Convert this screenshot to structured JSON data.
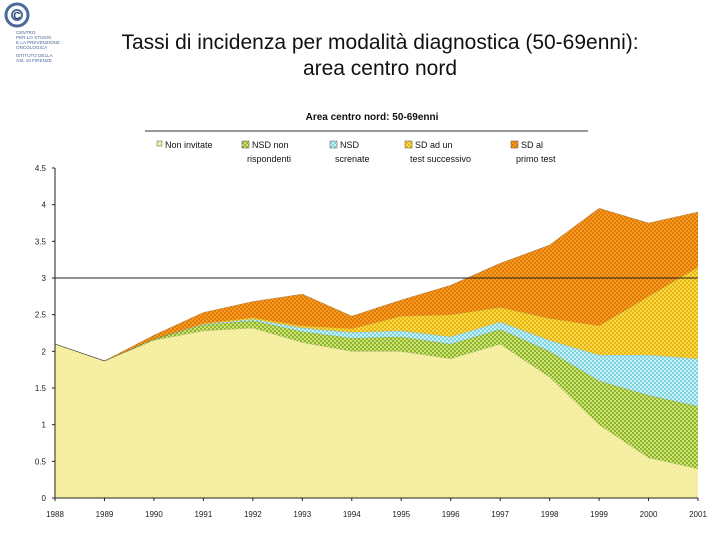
{
  "slide": {
    "title_line1": "Tassi di incidenza per modalità diagnostica (50-69enni):",
    "title_line2": "area centro nord"
  },
  "logo": {
    "monogram": "C",
    "lines": [
      "CENTRO",
      "PER LO STUDIO",
      "E LA PREVENZIONE",
      "ONCOLOGICA",
      "ISTITUTO DELLA",
      "ASL 10 FIRENZE"
    ]
  },
  "chart_data": {
    "type": "area",
    "stacked": true,
    "title": "Area centro nord: 50-69enni",
    "ylim": [
      0,
      4.5
    ],
    "yticks": [
      "0",
      "0.5",
      "1",
      "1.5",
      "2",
      "2.5",
      "3",
      "3.5",
      "4",
      "4.5"
    ],
    "ytick_values": [
      0,
      0.5,
      1,
      1.5,
      2,
      2.5,
      3,
      3.5,
      4,
      4.5
    ],
    "gridline": 3,
    "categories": [
      "1988",
      "1989",
      "1990",
      "1991",
      "1992",
      "1993",
      "1994",
      "1995",
      "1996",
      "1997",
      "1998",
      "1999",
      "2000",
      "2001"
    ],
    "series": [
      {
        "name": "Non invitate",
        "legend": [
          "Non invitate"
        ],
        "color": "#f5f0a3",
        "values": [
          2.1,
          1.87,
          2.15,
          2.28,
          2.32,
          2.12,
          2.0,
          2.0,
          1.9,
          2.1,
          1.65,
          1.0,
          0.55,
          0.4
        ]
      },
      {
        "name": "NSD non rispondenti",
        "legend": [
          "NSD non",
          "rispondenti"
        ],
        "color": "#b5d05a",
        "values": [
          0,
          0,
          0.02,
          0.08,
          0.1,
          0.15,
          0.18,
          0.2,
          0.2,
          0.2,
          0.35,
          0.6,
          0.85,
          0.85
        ]
      },
      {
        "name": "NSD screnate",
        "legend": [
          "NSD",
          "screnate"
        ],
        "color": "#a8e4ec",
        "values": [
          0,
          0,
          0,
          0.01,
          0.02,
          0.05,
          0.08,
          0.08,
          0.1,
          0.1,
          0.15,
          0.35,
          0.55,
          0.65
        ]
      },
      {
        "name": "SD ad un test successivo",
        "legend": [
          "SD ad un",
          "test successivo"
        ],
        "color": "#f2c21e",
        "values": [
          0,
          0,
          0,
          0.01,
          0.02,
          0.03,
          0.05,
          0.2,
          0.3,
          0.2,
          0.3,
          0.4,
          0.8,
          1.25
        ]
      },
      {
        "name": "SD al primo test",
        "legend": [
          "SD al",
          "primo test"
        ],
        "color": "#ee8a0a",
        "values": [
          0,
          0,
          0.05,
          0.15,
          0.22,
          0.43,
          0.17,
          0.22,
          0.4,
          0.6,
          1.0,
          1.6,
          1.0,
          0.75
        ]
      }
    ]
  }
}
